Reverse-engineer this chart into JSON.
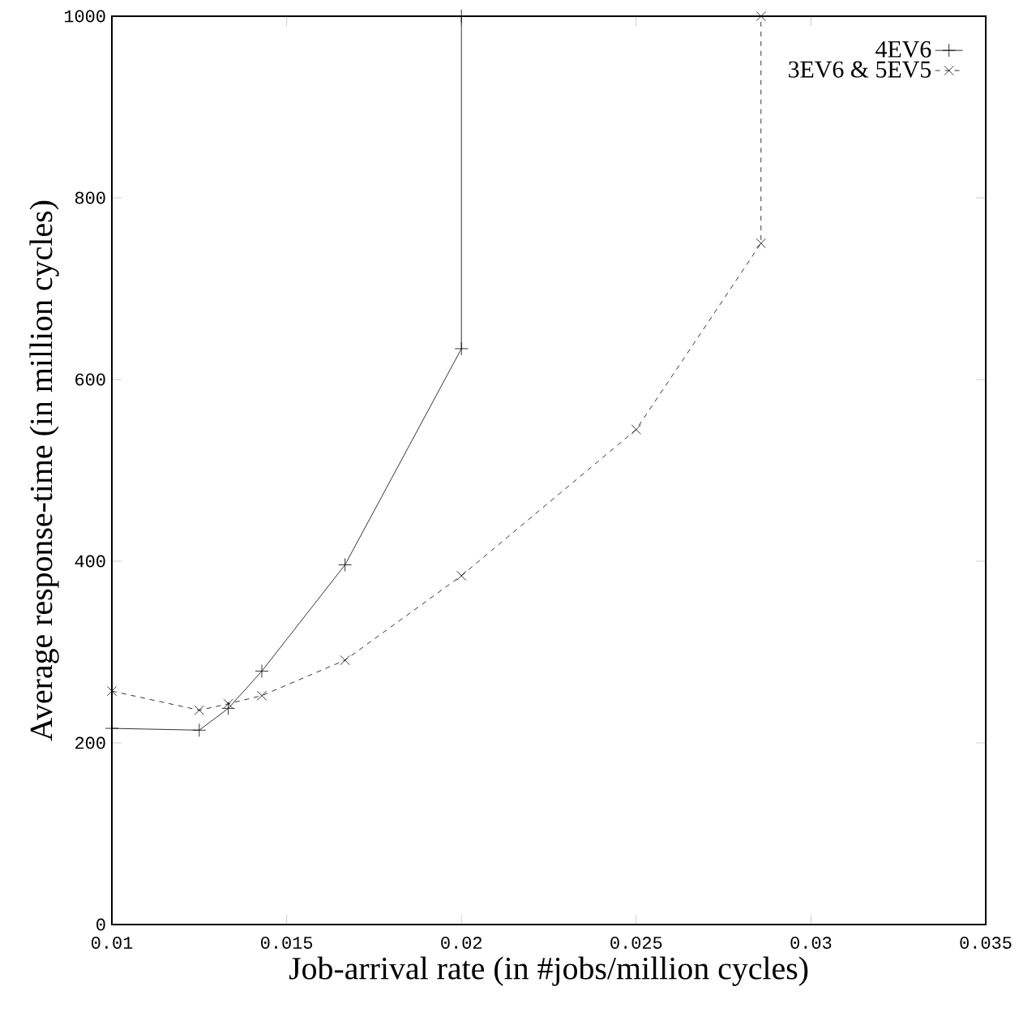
{
  "chart_data": {
    "type": "line",
    "xlabel": "Job-arrival rate (in #jobs/million cycles)",
    "ylabel": "Average response-time (in million cycles)",
    "xlim": [
      0.01,
      0.035
    ],
    "xticks": [
      0.01,
      0.015,
      0.02,
      0.025,
      0.03,
      0.035
    ],
    "ylim": [
      0,
      1000
    ],
    "yticks": [
      0,
      200,
      400,
      600,
      800,
      1000
    ],
    "grid": false,
    "legend": "top right",
    "series": [
      {
        "name": "4EV6",
        "color": "#000000",
        "marker": "plus",
        "line_style": "solid",
        "x": [
          0.01,
          0.0125,
          0.01333,
          0.01429,
          0.01667,
          0.02,
          0.02
        ],
        "values": [
          216,
          214,
          238,
          279,
          396,
          634,
          1000
        ]
      },
      {
        "name": "3EV6 & 5EV5",
        "color": "#000000",
        "marker": "cross",
        "line_style": "dashed",
        "x": [
          0.01,
          0.0125,
          0.01333,
          0.01429,
          0.01667,
          0.02,
          0.025,
          0.02857,
          0.02857
        ],
        "values": [
          257,
          236,
          243,
          252,
          291,
          384,
          545,
          750,
          1000
        ]
      }
    ]
  }
}
